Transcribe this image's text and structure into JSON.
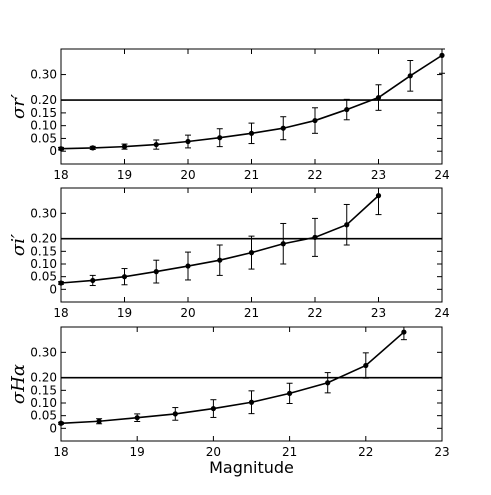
{
  "chart_data": [
    {
      "type": "line",
      "ylabel": "σr′",
      "xlabel": "",
      "xlim": [
        18,
        24
      ],
      "ylim": [
        -0.05,
        0.4
      ],
      "x_ticks": [
        18,
        19,
        20,
        21,
        22,
        23,
        24
      ],
      "y_ticks": [
        0,
        0.05,
        0.1,
        0.15,
        0.2,
        0.3
      ],
      "y_tick_labels": [
        "0",
        "0.05",
        "0.10",
        "0.15",
        "0.20",
        "0.30"
      ],
      "hline": 0.2,
      "series": [
        {
          "x": [
            18,
            18.5,
            19,
            19.5,
            20,
            20.5,
            21,
            21.5,
            22,
            22.5,
            23,
            23.5,
            24
          ],
          "y": [
            0.01,
            0.013,
            0.018,
            0.026,
            0.038,
            0.053,
            0.07,
            0.09,
            0.12,
            0.163,
            0.21,
            0.295,
            0.375
          ],
          "err": [
            0.005,
            0.006,
            0.01,
            0.018,
            0.025,
            0.035,
            0.04,
            0.045,
            0.05,
            0.04,
            0.05,
            0.06,
            0.07
          ]
        }
      ]
    },
    {
      "type": "line",
      "ylabel": "σi′",
      "xlabel": "",
      "xlim": [
        18,
        24
      ],
      "ylim": [
        -0.05,
        0.4
      ],
      "x_ticks": [
        18,
        19,
        20,
        21,
        22,
        23,
        24
      ],
      "y_ticks": [
        0,
        0.05,
        0.1,
        0.15,
        0.2,
        0.3
      ],
      "y_tick_labels": [
        "0",
        "0.05",
        "0.10",
        "0.15",
        "0.20",
        "0.30"
      ],
      "hline": 0.2,
      "series": [
        {
          "x": [
            18,
            18.5,
            19,
            19.5,
            20,
            20.5,
            21,
            21.5,
            22,
            22.5,
            23
          ],
          "y": [
            0.025,
            0.035,
            0.05,
            0.07,
            0.092,
            0.115,
            0.145,
            0.18,
            0.205,
            0.255,
            0.37
          ],
          "err": [
            0.005,
            0.02,
            0.032,
            0.045,
            0.055,
            0.06,
            0.065,
            0.08,
            0.075,
            0.08,
            0.075
          ]
        }
      ]
    },
    {
      "type": "line",
      "ylabel": "σHα",
      "xlabel": "Magnitude",
      "xlim": [
        18,
        23
      ],
      "ylim": [
        -0.05,
        0.4
      ],
      "x_ticks": [
        18,
        19,
        20,
        21,
        22,
        23
      ],
      "y_ticks": [
        0,
        0.05,
        0.1,
        0.15,
        0.2,
        0.3
      ],
      "y_tick_labels": [
        "0",
        "0.05",
        "0.10",
        "0.15",
        "0.20",
        "0.30"
      ],
      "hline": 0.2,
      "series": [
        {
          "x": [
            18,
            18.5,
            19,
            19.5,
            20,
            20.5,
            21,
            21.5,
            22,
            22.5
          ],
          "y": [
            0.02,
            0.028,
            0.042,
            0.057,
            0.078,
            0.103,
            0.138,
            0.18,
            0.248,
            0.38
          ],
          "err": [
            0.004,
            0.01,
            0.015,
            0.025,
            0.035,
            0.045,
            0.04,
            0.04,
            0.05,
            0.03
          ]
        }
      ]
    }
  ]
}
